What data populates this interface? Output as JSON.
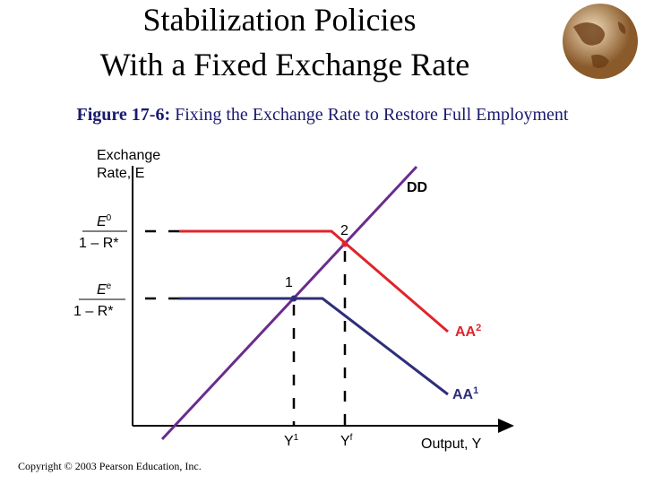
{
  "header": {
    "title_lines": [
      "Stabilization Policies",
      "With a Fixed Exchange Rate"
    ]
  },
  "caption": {
    "label": "Figure 17-6:",
    "text": "Fixing the Exchange Rate to Restore Full Employment"
  },
  "diagram": {
    "y_axis_label": [
      "Exchange",
      "Rate, E"
    ],
    "x_axis_label": "Output, Y",
    "curves": {
      "dd": "DD",
      "aa2": {
        "base": "AA",
        "sup": "2"
      },
      "aa1": {
        "base": "AA",
        "sup": "1"
      }
    },
    "y_levels": [
      {
        "num_base": "E",
        "num_sup": "0",
        "den": "1 – R*"
      },
      {
        "num_base": "E",
        "num_sup": "e",
        "den": "1 – R*"
      }
    ],
    "x_levels": [
      {
        "base": "Y",
        "sup": "1"
      },
      {
        "base": "Y",
        "sup": "f"
      }
    ],
    "points": [
      "1",
      "2"
    ]
  },
  "footer": {
    "copyright": "Copyright © 2003 Pearson Education, Inc."
  }
}
